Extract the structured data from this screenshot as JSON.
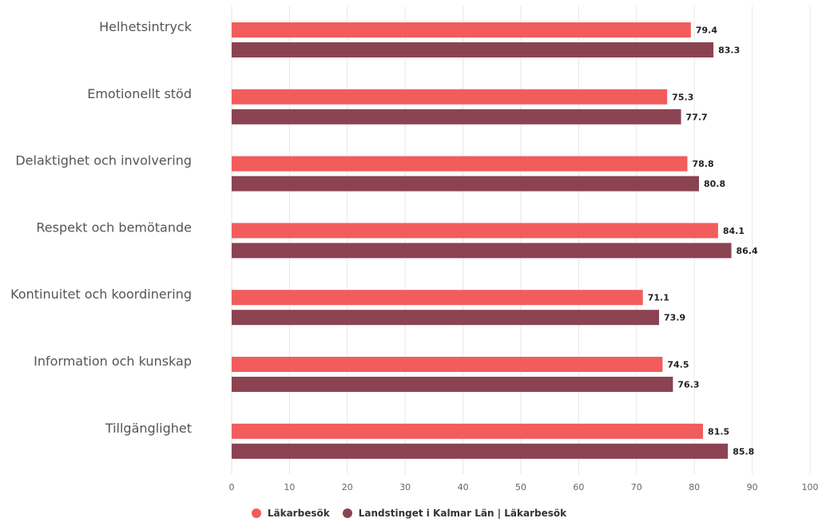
{
  "chart_data": {
    "type": "bar",
    "orientation": "horizontal",
    "categories": [
      "Helhetsintryck",
      "Emotionellt stöd",
      "Delaktighet och involvering",
      "Respekt och bemötande",
      "Kontinuitet och koordinering",
      "Information och kunskap",
      "Tillgänglighet"
    ],
    "series": [
      {
        "name": "Läkarbesök",
        "color": "#f25c5c",
        "values": [
          79.4,
          75.3,
          78.8,
          84.1,
          71.1,
          74.5,
          81.5
        ]
      },
      {
        "name": "Landstinget i Kalmar Län | Läkarbesök",
        "color": "#8b4352",
        "values": [
          83.3,
          77.7,
          80.8,
          86.4,
          73.9,
          76.3,
          85.8
        ]
      }
    ],
    "xlim": [
      0,
      100
    ],
    "xticks": [
      0,
      10,
      20,
      30,
      40,
      50,
      60,
      70,
      80,
      90,
      100
    ],
    "grid": true,
    "legend_position": "bottom-center",
    "data_labels": true
  }
}
